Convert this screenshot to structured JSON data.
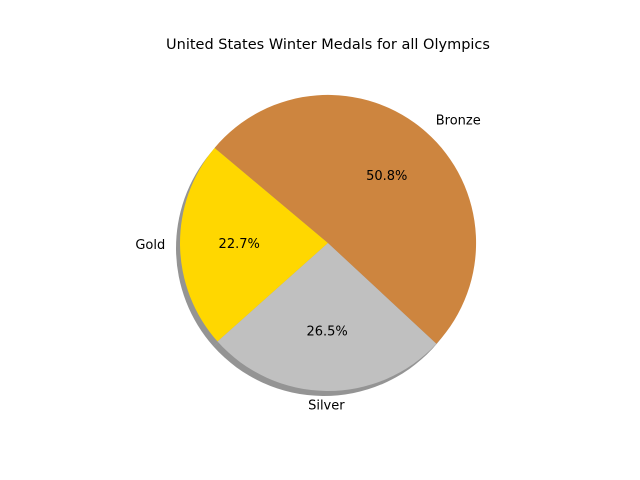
{
  "chart_data": {
    "type": "pie",
    "title": "United States Winter Medals for all Olympics",
    "categories": [
      "Gold",
      "Silver",
      "Bronze"
    ],
    "values": [
      22.7,
      26.5,
      50.8
    ],
    "percent_labels": [
      "22.7%",
      "26.5%",
      "50.8%"
    ],
    "colors": [
      "#ffd700",
      "#c0c0c0",
      "#cd853f"
    ],
    "shadow": true,
    "start_angle_deg": 140,
    "direction": "counterclockwise",
    "legend": "none"
  }
}
